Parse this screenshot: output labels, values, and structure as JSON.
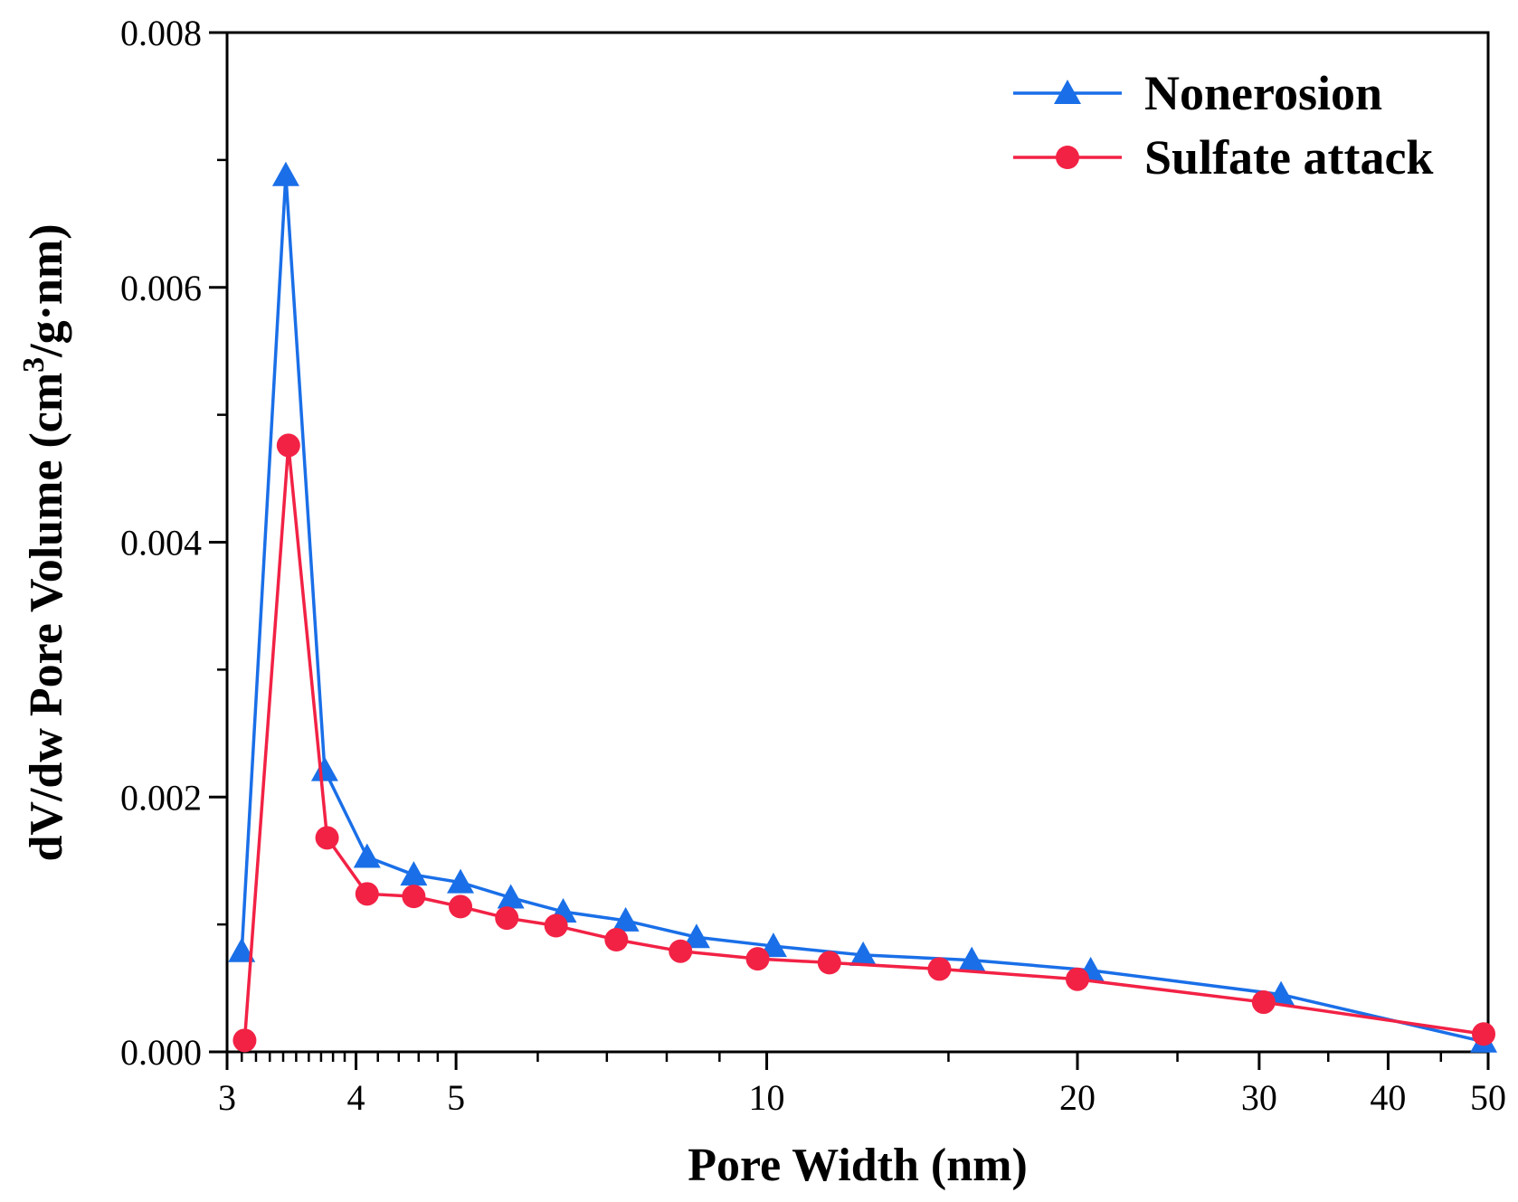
{
  "chart_data": {
    "type": "line",
    "title": "",
    "xlabel": "Pore Width (nm)",
    "ylabel": "dV/dw Pore Volume (cm³/g·nm)",
    "ylabel_parts": {
      "before": "dV/dw Pore Volume (cm",
      "sup": "3",
      "after": "/g·nm)"
    },
    "x_scale": "log",
    "xlim": [
      3,
      50
    ],
    "ylim": [
      0,
      0.008
    ],
    "x_ticks": [
      3,
      4,
      5,
      10,
      20,
      30,
      40,
      50
    ],
    "x_tick_labels": [
      "3",
      "4",
      "5",
      "10",
      "20",
      "30",
      "40",
      "50"
    ],
    "y_ticks": [
      0,
      0.002,
      0.004,
      0.006,
      0.008
    ],
    "y_tick_labels": [
      "0.000",
      "0.002",
      "0.004",
      "0.006",
      "0.008"
    ],
    "grid": false,
    "legend_position": "top-right",
    "series": [
      {
        "name": "Nonerosion",
        "color": "#1a6fe8",
        "marker": "triangle",
        "x": [
          3.1,
          3.42,
          3.73,
          4.1,
          4.55,
          5.05,
          5.65,
          6.35,
          7.3,
          8.55,
          10.15,
          12.4,
          15.8,
          20.6,
          31.5,
          49.5
        ],
        "y": [
          0.00079,
          0.00688,
          0.00221,
          0.00153,
          0.00139,
          0.00133,
          0.00121,
          0.0011,
          0.00103,
          0.0009,
          0.00083,
          0.00076,
          0.00072,
          0.00064,
          0.00045,
          8e-05
        ]
      },
      {
        "name": "Sulfate attack",
        "color": "#f22245",
        "marker": "circle",
        "x": [
          3.12,
          3.44,
          3.75,
          4.1,
          4.55,
          5.05,
          5.6,
          6.25,
          7.15,
          8.25,
          9.8,
          11.5,
          14.7,
          20.0,
          30.3,
          49.5
        ],
        "y": [
          9e-05,
          0.00476,
          0.00168,
          0.00124,
          0.00122,
          0.00114,
          0.00105,
          0.00099,
          0.00088,
          0.00079,
          0.00073,
          0.0007,
          0.00065,
          0.00057,
          0.00039,
          0.00014
        ]
      }
    ]
  }
}
